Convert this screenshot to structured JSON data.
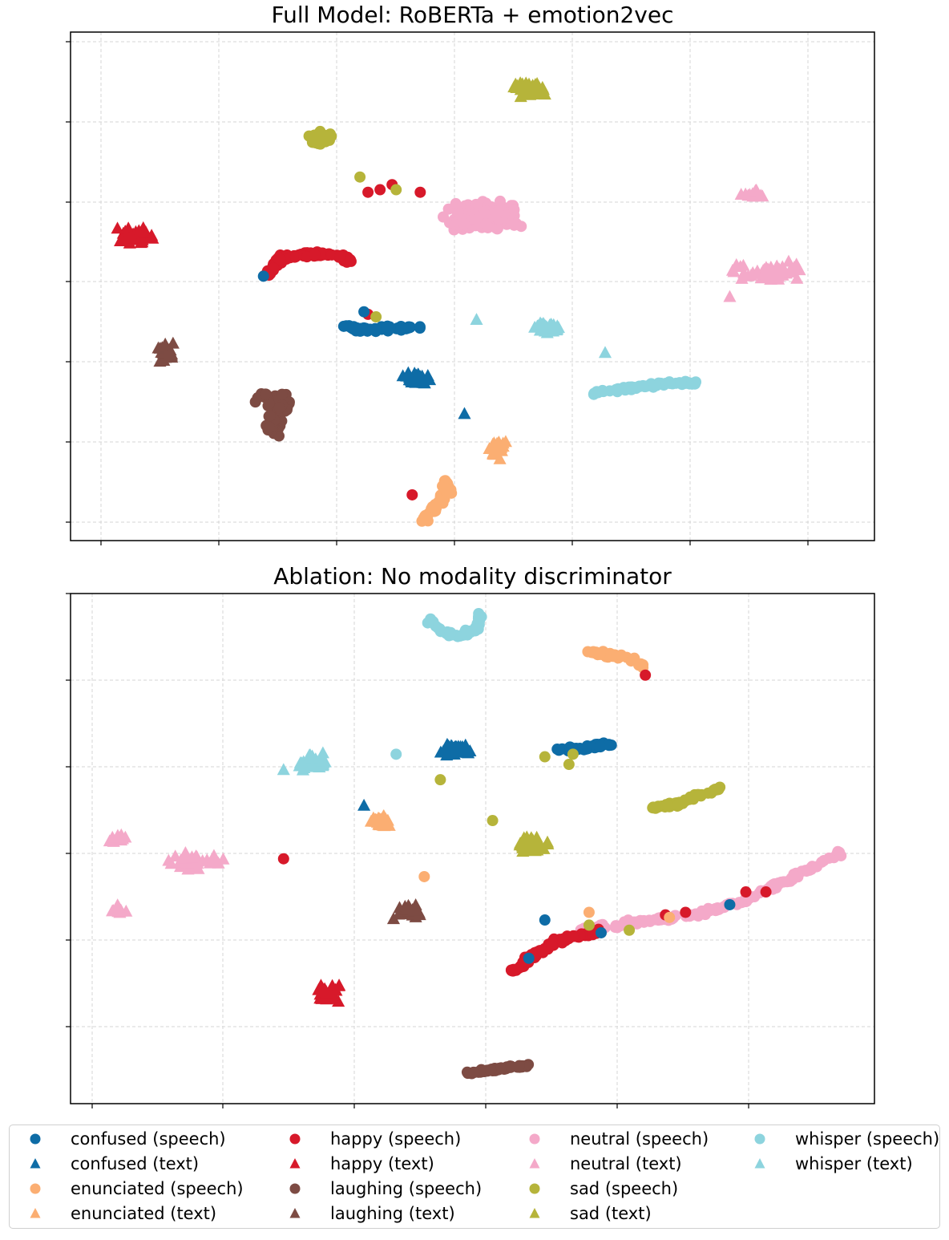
{
  "colors": {
    "confused": "#0e6ca6",
    "happy": "#d7192a",
    "enunciated": "#fbae72",
    "laughing": "#7d4b43",
    "neutral": "#f4a9c9",
    "sad": "#b6b43a",
    "whisper": "#8dd4de"
  },
  "legend": {
    "items": [
      {
        "label": "confused (speech)",
        "category": "confused",
        "marker": "circle"
      },
      {
        "label": "confused (text)",
        "category": "confused",
        "marker": "triangle"
      },
      {
        "label": "enunciated (speech)",
        "category": "enunciated",
        "marker": "circle"
      },
      {
        "label": "enunciated (text)",
        "category": "enunciated",
        "marker": "triangle"
      },
      {
        "label": "happy (speech)",
        "category": "happy",
        "marker": "circle"
      },
      {
        "label": "happy (text)",
        "category": "happy",
        "marker": "triangle"
      },
      {
        "label": "laughing (speech)",
        "category": "laughing",
        "marker": "circle"
      },
      {
        "label": "laughing (text)",
        "category": "laughing",
        "marker": "triangle"
      },
      {
        "label": "neutral (speech)",
        "category": "neutral",
        "marker": "circle"
      },
      {
        "label": "neutral (text)",
        "category": "neutral",
        "marker": "triangle"
      },
      {
        "label": "sad (speech)",
        "category": "sad",
        "marker": "circle"
      },
      {
        "label": "sad (text)",
        "category": "sad",
        "marker": "triangle"
      },
      {
        "label": "whisper (speech)",
        "category": "whisper",
        "marker": "circle"
      },
      {
        "label": "whisper (text)",
        "category": "whisper",
        "marker": "triangle"
      }
    ]
  },
  "chart_data": [
    {
      "type": "scatter",
      "title": "Full Model: RoBERTa + emotion2vec",
      "xlabel": "",
      "ylabel": "",
      "xlim": [
        0,
        100
      ],
      "ylim": [
        0,
        100
      ],
      "grid": true,
      "tick_labels_shown": false,
      "clusters": [
        {
          "category": "sad",
          "modality": "text",
          "center": [
            57,
            89
          ],
          "spread": [
            3,
            2.2
          ],
          "shape": "blob",
          "count": 40
        },
        {
          "category": "sad",
          "modality": "speech",
          "center": [
            31,
            79
          ],
          "spread": [
            2.2,
            1.7
          ],
          "shape": "blob",
          "count": 60
        },
        {
          "category": "neutral",
          "modality": "speech",
          "center": [
            51,
            64
          ],
          "spread": [
            6.5,
            4
          ],
          "shape": "blob",
          "count": 160
        },
        {
          "category": "neutral",
          "modality": "text",
          "center": [
            85,
            68
          ],
          "spread": [
            2.2,
            1.2
          ],
          "shape": "blob",
          "count": 12
        },
        {
          "category": "neutral",
          "modality": "text",
          "center": [
            87,
            53
          ],
          "spread": [
            6,
            2.5
          ],
          "shape": "blob",
          "count": 50
        },
        {
          "category": "happy",
          "modality": "text",
          "center": [
            8,
            60
          ],
          "spread": [
            3.2,
            2.5
          ],
          "shape": "blob",
          "count": 35
        },
        {
          "category": "happy",
          "modality": "speech",
          "center": [
            30,
            55
          ],
          "spread": [
            0.8,
            0.8
          ],
          "shape": "curve",
          "curve": [
            [
              24.5,
              52
            ],
            [
              26,
              55.5
            ],
            [
              30,
              56.5
            ],
            [
              34,
              56
            ],
            [
              34.5,
              55
            ]
          ],
          "count": 75
        },
        {
          "category": "confused",
          "modality": "speech",
          "center": [
            39,
            42
          ],
          "spread": [
            0.7,
            0.7
          ],
          "shape": "curve",
          "curve": [
            [
              34.5,
              42
            ],
            [
              37,
              41.5
            ],
            [
              40,
              41.8
            ],
            [
              43.5,
              42
            ]
          ],
          "count": 55
        },
        {
          "category": "whisper",
          "modality": "text",
          "center": [
            59.5,
            42
          ],
          "spread": [
            2.5,
            2
          ],
          "shape": "blob",
          "count": 30
        },
        {
          "category": "laughing",
          "modality": "text",
          "center": [
            12,
            37
          ],
          "spread": [
            1.8,
            2.5
          ],
          "shape": "blob",
          "count": 30
        },
        {
          "category": "confused",
          "modality": "text",
          "center": [
            43,
            32
          ],
          "spread": [
            2.6,
            1.6
          ],
          "shape": "blob",
          "count": 35
        },
        {
          "category": "whisper",
          "modality": "speech",
          "center": [
            71,
            30
          ],
          "spread": [
            0.5,
            0.5
          ],
          "shape": "curve",
          "curve": [
            [
              65,
              29
            ],
            [
              70,
              30
            ],
            [
              75,
              31
            ],
            [
              78,
              31
            ]
          ],
          "count": 60
        },
        {
          "category": "laughing",
          "modality": "speech",
          "center": [
            26,
            24
          ],
          "spread": [
            1.3,
            2.5
          ],
          "shape": "curve",
          "curve": [
            [
              23.5,
              28.5
            ],
            [
              25.5,
              28
            ],
            [
              26.5,
              26
            ],
            [
              25,
              23
            ],
            [
              25.5,
              21.5
            ]
          ],
          "count": 60
        },
        {
          "category": "enunciated",
          "modality": "text",
          "center": [
            53,
            18
          ],
          "spread": [
            1.8,
            2.8
          ],
          "shape": "blob",
          "count": 30
        },
        {
          "category": "enunciated",
          "modality": "speech",
          "center": [
            45.5,
            8
          ],
          "spread": [
            0.8,
            1
          ],
          "shape": "curve",
          "curve": [
            [
              46.5,
              12
            ],
            [
              47,
              9.5
            ],
            [
              45,
              6
            ],
            [
              44,
              4
            ]
          ],
          "count": 50
        }
      ],
      "points": [
        {
          "category": "sad",
          "modality": "speech",
          "x": 36,
          "y": 71.5
        },
        {
          "category": "happy",
          "modality": "speech",
          "x": 37,
          "y": 68.5
        },
        {
          "category": "happy",
          "modality": "speech",
          "x": 40,
          "y": 70
        },
        {
          "category": "happy",
          "modality": "speech",
          "x": 38.5,
          "y": 69
        },
        {
          "category": "sad",
          "modality": "speech",
          "x": 40.5,
          "y": 69
        },
        {
          "category": "happy",
          "modality": "speech",
          "x": 43.5,
          "y": 68.5
        },
        {
          "category": "confused",
          "modality": "speech",
          "x": 24,
          "y": 52
        },
        {
          "category": "happy",
          "modality": "speech",
          "x": 37,
          "y": 44.5
        },
        {
          "category": "confused",
          "modality": "speech",
          "x": 36.5,
          "y": 45
        },
        {
          "category": "sad",
          "modality": "speech",
          "x": 38,
          "y": 44
        },
        {
          "category": "whisper",
          "modality": "text",
          "x": 50.5,
          "y": 43.5
        },
        {
          "category": "whisper",
          "modality": "text",
          "x": 66.5,
          "y": 37
        },
        {
          "category": "neutral",
          "modality": "text",
          "x": 82,
          "y": 48
        },
        {
          "category": "confused",
          "modality": "text",
          "x": 49,
          "y": 25
        },
        {
          "category": "happy",
          "modality": "speech",
          "x": 42.5,
          "y": 9
        }
      ]
    },
    {
      "type": "scatter",
      "title": "Ablation: No modality discriminator",
      "xlabel": "",
      "ylabel": "",
      "xlim": [
        0,
        100
      ],
      "ylim": [
        0,
        100
      ],
      "grid": true,
      "tick_labels_shown": false,
      "clusters": [
        {
          "category": "whisper",
          "modality": "speech",
          "center": [
            47,
            92
          ],
          "spread": [
            0.7,
            0.7
          ],
          "shape": "curve",
          "curve": [
            [
              44.5,
              95.5
            ],
            [
              46,
              92.5
            ],
            [
              48.5,
              91.5
            ],
            [
              50.5,
              93
            ],
            [
              51,
              96
            ]
          ],
          "count": 55
        },
        {
          "category": "enunciated",
          "modality": "speech",
          "center": [
            68,
            87
          ],
          "spread": [
            0.6,
            0.6
          ],
          "shape": "curve",
          "curve": [
            [
              64.5,
              88.5
            ],
            [
              67,
              88
            ],
            [
              70,
              87
            ],
            [
              71.5,
              85.5
            ]
          ],
          "count": 35
        },
        {
          "category": "whisper",
          "modality": "text",
          "center": [
            30,
            67
          ],
          "spread": [
            2.8,
            2.2
          ],
          "shape": "blob",
          "count": 40
        },
        {
          "category": "confused",
          "modality": "text",
          "center": [
            48,
            69.5
          ],
          "spread": [
            2.5,
            1.8
          ],
          "shape": "blob",
          "count": 40
        },
        {
          "category": "confused",
          "modality": "speech",
          "center": [
            63,
            69.5
          ],
          "spread": [
            0.6,
            0.6
          ],
          "shape": "curve",
          "curve": [
            [
              60.5,
              69.5
            ],
            [
              62.5,
              69.5
            ],
            [
              65,
              70
            ],
            [
              67,
              70.5
            ]
          ],
          "count": 45
        },
        {
          "category": "sad",
          "modality": "speech",
          "center": [
            75,
            59.5
          ],
          "spread": [
            0.6,
            0.6
          ],
          "shape": "curve",
          "curve": [
            [
              72.5,
              58
            ],
            [
              75,
              58.5
            ],
            [
              78,
              60.5
            ],
            [
              81,
              62
            ]
          ],
          "count": 50
        },
        {
          "category": "enunciated",
          "modality": "text",
          "center": [
            38.5,
            55.5
          ],
          "spread": [
            1.8,
            1.6
          ],
          "shape": "blob",
          "count": 35
        },
        {
          "category": "sad",
          "modality": "text",
          "center": [
            57.5,
            51
          ],
          "spread": [
            2.5,
            2.2
          ],
          "shape": "blob",
          "count": 40
        },
        {
          "category": "neutral",
          "modality": "text",
          "center": [
            6,
            52
          ],
          "spread": [
            1.5,
            1.5
          ],
          "shape": "blob",
          "count": 12
        },
        {
          "category": "neutral",
          "modality": "text",
          "center": [
            15,
            47.5
          ],
          "spread": [
            4.5,
            2.2
          ],
          "shape": "blob",
          "count": 40
        },
        {
          "category": "neutral",
          "modality": "text",
          "center": [
            6,
            38
          ],
          "spread": [
            1.3,
            1.2
          ],
          "shape": "blob",
          "count": 12
        },
        {
          "category": "laughing",
          "modality": "text",
          "center": [
            42,
            38
          ],
          "spread": [
            2.5,
            1.8
          ],
          "shape": "blob",
          "count": 30
        },
        {
          "category": "neutral",
          "modality": "speech",
          "center": [
            79,
            38
          ],
          "spread": [
            0.7,
            0.7
          ],
          "shape": "curve",
          "curve": [
            [
              63,
              34
            ],
            [
              70,
              35.5
            ],
            [
              78,
              37
            ],
            [
              84,
              40
            ],
            [
              90,
              44.5
            ],
            [
              96,
              49
            ]
          ],
          "count": 150
        },
        {
          "category": "happy",
          "modality": "speech",
          "center": [
            59,
            30
          ],
          "spread": [
            0.8,
            0.8
          ],
          "shape": "curve",
          "curve": [
            [
              55,
              26
            ],
            [
              57.5,
              29
            ],
            [
              60,
              31.5
            ],
            [
              63,
              33
            ],
            [
              66,
              33.5
            ]
          ],
          "count": 80
        },
        {
          "category": "happy",
          "modality": "text",
          "center": [
            32,
            21.5
          ],
          "spread": [
            2.2,
            2.4
          ],
          "shape": "blob",
          "count": 35
        },
        {
          "category": "laughing",
          "modality": "speech",
          "center": [
            52,
            7
          ],
          "spread": [
            0.5,
            0.5
          ],
          "shape": "curve",
          "curve": [
            [
              49.5,
              6
            ],
            [
              52,
              6.5
            ],
            [
              55,
              7.2
            ],
            [
              58,
              7.5
            ]
          ],
          "count": 50
        }
      ],
      "points": [
        {
          "category": "whisper",
          "modality": "speech",
          "x": 40.5,
          "y": 68.5
        },
        {
          "category": "sad",
          "modality": "speech",
          "x": 46,
          "y": 63.5
        },
        {
          "category": "whisper",
          "modality": "text",
          "x": 26.5,
          "y": 65.5
        },
        {
          "category": "confused",
          "modality": "text",
          "x": 36.5,
          "y": 58.5
        },
        {
          "category": "sad",
          "modality": "speech",
          "x": 59,
          "y": 68
        },
        {
          "category": "sad",
          "modality": "speech",
          "x": 62.5,
          "y": 68.5
        },
        {
          "category": "sad",
          "modality": "speech",
          "x": 62,
          "y": 66.5
        },
        {
          "category": "sad",
          "modality": "speech",
          "x": 52.5,
          "y": 55.5
        },
        {
          "category": "happy",
          "modality": "speech",
          "x": 26.5,
          "y": 48
        },
        {
          "category": "enunciated",
          "modality": "speech",
          "x": 44,
          "y": 44.5
        },
        {
          "category": "confused",
          "modality": "speech",
          "x": 59,
          "y": 36
        },
        {
          "category": "enunciated",
          "modality": "speech",
          "x": 64.5,
          "y": 37.5
        },
        {
          "category": "sad",
          "modality": "speech",
          "x": 64.5,
          "y": 35
        },
        {
          "category": "confused",
          "modality": "speech",
          "x": 66,
          "y": 33.5
        },
        {
          "category": "sad",
          "modality": "speech",
          "x": 69.5,
          "y": 34
        },
        {
          "category": "happy",
          "modality": "speech",
          "x": 74,
          "y": 37
        },
        {
          "category": "enunciated",
          "modality": "speech",
          "x": 74.5,
          "y": 36.5
        },
        {
          "category": "happy",
          "modality": "speech",
          "x": 76.5,
          "y": 37.5
        },
        {
          "category": "confused",
          "modality": "speech",
          "x": 82,
          "y": 39
        },
        {
          "category": "happy",
          "modality": "speech",
          "x": 84,
          "y": 41.5
        },
        {
          "category": "happy",
          "modality": "speech",
          "x": 86.5,
          "y": 41.5
        },
        {
          "category": "confused",
          "modality": "speech",
          "x": 57,
          "y": 28.5
        },
        {
          "category": "happy",
          "modality": "speech",
          "x": 71.5,
          "y": 84
        }
      ]
    }
  ]
}
